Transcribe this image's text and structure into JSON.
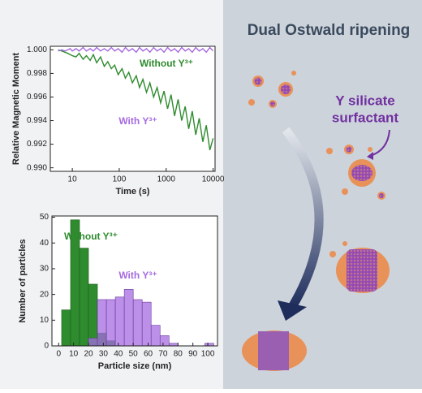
{
  "chart_data": [
    {
      "type": "line",
      "xlabel": "Time (s)",
      "ylabel": "Relative Magnetic Moment",
      "xlog": true,
      "x": [
        5,
        6,
        7,
        8,
        9,
        10,
        12,
        14,
        17,
        20,
        24,
        28,
        33,
        40,
        48,
        57,
        68,
        80,
        95,
        115,
        135,
        160,
        190,
        230,
        270,
        320,
        380,
        450,
        540,
        640,
        760,
        900,
        1070,
        1270,
        1510,
        1800,
        2140,
        2540,
        3020,
        3590,
        4270,
        5070,
        6030,
        7170,
        8520,
        10000
      ],
      "series": [
        {
          "name": "Without Y³⁺",
          "color": "#2e8b2e",
          "values": [
            1.0,
            0.9999,
            0.9998,
            0.9997,
            0.9996,
            0.9995,
            0.9994,
            0.9997,
            0.9992,
            0.9995,
            0.9991,
            0.9996,
            0.9989,
            0.9994,
            0.9986,
            0.999,
            0.9984,
            0.9987,
            0.9979,
            0.9984,
            0.9976,
            0.9981,
            0.9972,
            0.9978,
            0.9968,
            0.9975,
            0.9964,
            0.9972,
            0.996,
            0.9968,
            0.9955,
            0.9965,
            0.995,
            0.9962,
            0.9944,
            0.9958,
            0.994,
            0.9952,
            0.9933,
            0.9948,
            0.9928,
            0.9942,
            0.9922,
            0.9936,
            0.9915,
            0.9925
          ]
        },
        {
          "name": "With Y³⁺",
          "color": "#a66be0",
          "values": [
            0.9999,
            1.0,
            0.9999,
            1.0,
            1.0001,
            0.9999,
            1.0001,
            0.9999,
            1.0002,
            0.9999,
            1.0001,
            0.9999,
            1.0002,
            0.9999,
            1.0001,
            0.9999,
            1.0002,
            0.9999,
            1.0001,
            0.9998,
            1.0002,
            0.9999,
            1.0001,
            0.9998,
            1.0002,
            0.9999,
            1.0001,
            0.9998,
            1.0002,
            0.9999,
            1.0001,
            0.9998,
            1.0002,
            0.9999,
            1.0001,
            0.9998,
            1.0002,
            0.9999,
            1.0001,
            0.9998,
            1.0002,
            0.9999,
            1.0001,
            0.9998,
            1.0002,
            0.9999
          ]
        }
      ],
      "xlim": [
        3.4,
        11000
      ],
      "ylim": [
        0.9897,
        1.0003
      ],
      "xticks": [
        10,
        100,
        1000,
        10000
      ],
      "yticks": [
        {
          "value": 0.99,
          "label": "0.990"
        },
        {
          "value": 0.992,
          "label": "0.992"
        },
        {
          "value": 0.994,
          "label": "0.994"
        },
        {
          "value": 0.996,
          "label": "0.996"
        },
        {
          "value": 0.998,
          "label": "0.998"
        },
        {
          "value": 1.0,
          "label": "1.000"
        }
      ]
    },
    {
      "type": "histogram",
      "xlabel": "Particle size (nm)",
      "ylabel": "Number of particles",
      "series": [
        {
          "name": "Without Y³⁺",
          "color": "#2e8b2e",
          "bins": [
            2,
            8,
            14,
            20,
            26,
            32,
            38
          ],
          "values": [
            14,
            49,
            38,
            24,
            5,
            2
          ]
        },
        {
          "name": "With Y³⁺",
          "color": "#a66be0",
          "bins": [
            20,
            26,
            32,
            38,
            44,
            50,
            56,
            62,
            68,
            74,
            80,
            86,
            92,
            98,
            104
          ],
          "values": [
            3,
            18,
            18,
            19,
            22,
            18,
            17,
            8,
            4,
            1,
            0,
            0,
            0,
            1
          ]
        }
      ],
      "xlim": [
        -4.5,
        106.5
      ],
      "ylim": [
        0,
        50.5
      ],
      "xticks": [
        0,
        10,
        20,
        30,
        40,
        50,
        60,
        70,
        80,
        90,
        100
      ],
      "yticks": [
        0,
        10,
        20,
        30,
        40,
        50
      ]
    }
  ],
  "diagram": {
    "title": "Dual Ostwald ripening",
    "label_lines": [
      "Y silicate",
      "surfactant"
    ]
  }
}
